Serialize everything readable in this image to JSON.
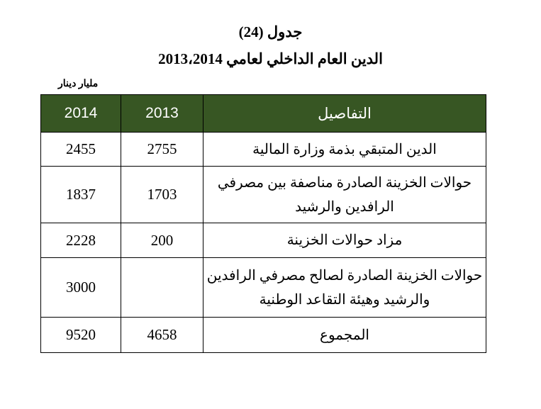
{
  "title_number": "جدول (24)",
  "title_main": "الدين العام الداخلي لعامي 2013،2014",
  "unit_label": "مليار دينار",
  "table": {
    "headers": {
      "y2014": "2014",
      "y2013": "2013",
      "details": "التفاصيل"
    },
    "rows": [
      {
        "details": "الدين المتبقي بذمة وزارة المالية",
        "y2013": "2755",
        "y2014": "2455"
      },
      {
        "details": "حوالات الخزينة الصادرة مناصفة بين مصرفي الرافدين والرشيد",
        "y2013": "1703",
        "y2014": "1837"
      },
      {
        "details": "مزاد حوالات الخزينة",
        "y2013": "200",
        "y2014": "2228"
      },
      {
        "details": "حوالات الخزينة الصادرة لصالح مصرفي الرافدين والرشيد وهيئة التقاعد الوطنية",
        "y2013": "",
        "y2014": "3000"
      },
      {
        "details": "المجموع",
        "y2013": "4658",
        "y2014": "9520"
      }
    ]
  },
  "colors": {
    "header_bg": "#375623",
    "header_text": "#ffffff"
  }
}
